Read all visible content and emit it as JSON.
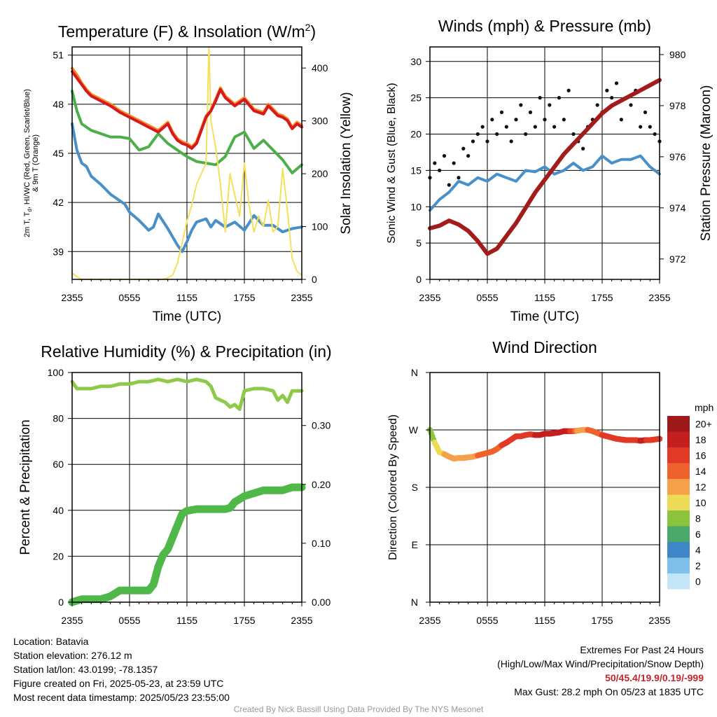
{
  "chart_data": [
    {
      "type": "line",
      "title": "Temperature (F) & Insolation (W/m²)",
      "title_main": "Temperature (F) & Insolation (W/m",
      "title_sup": "2",
      "title_close": ")",
      "xlabel": "Time (UTC)",
      "ylabel_lines": [
        "2m T, T",
        "d",
        ", HI/WC (Red, Green, Scarlet/Blue)",
        "& 9m T (Orange)"
      ],
      "y2label": "Solar Insolation (Yellow)",
      "x_ticks": [
        "2355",
        "0555",
        "1155",
        "1755",
        "2355"
      ],
      "ylim": [
        37.3,
        51.5
      ],
      "y_ticks": [
        39,
        42,
        45,
        48,
        51
      ],
      "y2lim": [
        0,
        440
      ],
      "y2_ticks": [
        0,
        100,
        200,
        300,
        400
      ],
      "series": [
        {
          "name": "2m T",
          "color": "#d7191c",
          "axis": "left",
          "x": [
            0,
            0.5,
            1,
            1.5,
            2,
            3,
            4,
            5,
            6,
            7,
            8,
            9,
            10,
            10.5,
            11,
            11.5,
            12,
            12.5,
            13,
            13.5,
            14,
            14.5,
            15,
            15.5,
            16,
            17,
            18,
            19,
            20,
            20.5,
            21,
            21.5,
            22,
            22.5,
            23,
            23.5,
            24
          ],
          "values": [
            50,
            49.6,
            49.2,
            48.8,
            48.5,
            48.2,
            47.9,
            47.5,
            47.2,
            46.9,
            46.6,
            46.3,
            46.8,
            46.2,
            45.8,
            45.6,
            45.5,
            45.3,
            45.6,
            46.4,
            47.2,
            47.6,
            48.2,
            48.9,
            48.4,
            47.9,
            48.3,
            47.6,
            47.4,
            47.9,
            47.6,
            47.3,
            47.2,
            47.0,
            46.5,
            46.8,
            46.6
          ]
        },
        {
          "name": "9m T",
          "color": "#f28c28",
          "axis": "left",
          "x": [
            0,
            0.5,
            1,
            1.5,
            2,
            3,
            4,
            5,
            6,
            7,
            8,
            9,
            10,
            10.5,
            11,
            11.5,
            12,
            12.5,
            13,
            13.5,
            14,
            14.5,
            15,
            15.5,
            16,
            17,
            18,
            19,
            20,
            20.5,
            21,
            21.5,
            22,
            22.5,
            23,
            23.5,
            24
          ],
          "values": [
            50.2,
            49.8,
            49.3,
            48.9,
            48.6,
            48.3,
            48.0,
            47.6,
            47.3,
            47.0,
            46.7,
            46.4,
            46.9,
            46.3,
            45.9,
            45.7,
            45.6,
            45.4,
            45.7,
            46.5,
            47.3,
            47.6,
            48.3,
            49.0,
            48.5,
            48.0,
            48.4,
            47.7,
            47.5,
            48.0,
            47.7,
            47.4,
            47.3,
            47.1,
            46.6,
            46.9,
            46.7
          ]
        },
        {
          "name": "2m Td",
          "color": "#4daf4a",
          "axis": "left",
          "x": [
            0,
            0.5,
            1,
            1.5,
            2,
            3,
            4,
            5,
            6,
            7,
            8,
            9,
            10,
            11,
            12,
            13,
            14,
            15,
            16,
            17,
            18,
            19,
            20,
            21,
            22,
            23,
            24
          ],
          "values": [
            48.8,
            47.6,
            46.8,
            46.6,
            46.4,
            46.2,
            46.0,
            46.0,
            45.9,
            45.2,
            45.4,
            46.2,
            45.6,
            45.2,
            44.8,
            44.5,
            44.4,
            44.3,
            44.8,
            46.0,
            46.3,
            45.3,
            45.8,
            45.2,
            44.6,
            43.8,
            44.3
          ]
        },
        {
          "name": "HI/WC",
          "color": "#4a90c8",
          "axis": "left",
          "x": [
            0,
            0.5,
            1,
            1.5,
            2,
            3,
            4,
            5,
            5.5,
            6,
            7,
            7.5,
            8,
            8.5,
            9,
            10,
            10.5,
            11,
            11.5,
            12,
            12.5,
            13,
            14,
            14.5,
            15,
            16,
            17,
            18,
            19,
            20,
            21,
            22,
            23,
            24
          ],
          "values": [
            46.8,
            45.2,
            44.4,
            44.2,
            43.6,
            43.1,
            42.5,
            42.1,
            41.9,
            41.4,
            40.9,
            40.6,
            40.3,
            40.5,
            41.3,
            40.4,
            39.9,
            39.4,
            39.0,
            39.6,
            40.3,
            40.8,
            41.0,
            40.5,
            40.9,
            40.5,
            40.8,
            40.3,
            41.2,
            40.6,
            40.6,
            40.2,
            40.4,
            40.5
          ]
        },
        {
          "name": "Solar Insolation",
          "color": "#f5e05a",
          "axis": "right",
          "x": [
            0,
            0.5,
            1,
            2,
            3,
            4,
            5,
            6,
            7,
            8,
            9,
            9.5,
            10,
            10.5,
            11,
            11.5,
            12,
            12.5,
            13,
            13.5,
            14,
            14.3,
            14.5,
            15,
            15.5,
            16,
            16.5,
            17,
            17.5,
            18,
            18.5,
            19,
            19.5,
            20,
            20.5,
            21,
            21.5,
            22,
            22.5,
            23,
            23.5,
            24
          ],
          "values": [
            12,
            5,
            0,
            0,
            0,
            0,
            0,
            0,
            0,
            0,
            0,
            0,
            3,
            8,
            30,
            70,
            110,
            140,
            180,
            200,
            220,
            440,
            300,
            250,
            180,
            90,
            200,
            160,
            120,
            220,
            140,
            90,
            120,
            100,
            150,
            90,
            100,
            210,
            130,
            40,
            15,
            8
          ]
        }
      ]
    },
    {
      "type": "scatter",
      "title": "Winds (mph) & Pressure (mb)",
      "xlabel": "Time (UTC)",
      "ylabel": "Sonic Wind & Gust (Blue, Black)",
      "y2label": "Station Pressure (Maroon)",
      "x_ticks": [
        "2355",
        "0555",
        "1155",
        "1755",
        "2355"
      ],
      "ylim": [
        0,
        32
      ],
      "y_ticks": [
        0,
        5,
        10,
        15,
        20,
        25,
        30
      ],
      "y2lim": [
        971.2,
        980.3
      ],
      "y2_ticks": [
        972,
        974,
        976,
        978,
        980
      ],
      "series": [
        {
          "name": "Sonic Wind",
          "color": "#4a90c8",
          "axis": "left",
          "x": [
            0,
            1,
            2,
            3,
            4,
            5,
            6,
            7,
            8,
            9,
            10,
            11,
            12,
            13,
            14,
            15,
            16,
            17,
            18,
            19,
            20,
            21,
            22,
            23,
            24
          ],
          "values": [
            9.5,
            11,
            12,
            13.5,
            13,
            14,
            13.5,
            14.5,
            14,
            13.5,
            15,
            14.8,
            15.5,
            14.5,
            15,
            16,
            15,
            15.5,
            17,
            16,
            16.5,
            16.5,
            17,
            15.5,
            14.5
          ]
        },
        {
          "name": "Gust",
          "color": "#111111",
          "axis": "left",
          "x": [
            0,
            0.5,
            1,
            1.5,
            2,
            2.5,
            3,
            3.5,
            4,
            4.5,
            5,
            5.5,
            6,
            6.5,
            7,
            7.5,
            8,
            8.5,
            9,
            9.5,
            10,
            10.5,
            11,
            11.5,
            12,
            12.5,
            13,
            13.5,
            14,
            14.5,
            15,
            15.5,
            16,
            16.5,
            17,
            17.5,
            18,
            18.5,
            19,
            19.5,
            20,
            20.5,
            21,
            21.5,
            22,
            22.5,
            23,
            23.5,
            24
          ],
          "values": [
            14,
            16,
            15,
            17,
            13,
            16,
            14,
            18,
            17,
            19,
            20,
            21,
            19,
            22,
            20,
            23,
            21,
            19,
            22,
            24,
            20,
            23,
            21,
            25,
            22,
            24,
            21,
            25,
            22,
            26,
            20,
            19,
            18,
            21,
            22,
            24,
            23,
            26,
            25,
            27,
            22,
            25,
            24,
            26,
            21,
            23,
            21,
            20,
            19
          ]
        },
        {
          "name": "Station Pressure",
          "color": "#a31c1c",
          "axis": "right",
          "x": [
            0,
            1,
            2,
            3,
            4,
            5,
            6,
            7,
            8,
            9,
            10,
            11,
            12,
            13,
            14,
            15,
            16,
            17,
            18,
            19,
            20,
            21,
            22,
            23,
            24
          ],
          "values": [
            973.2,
            973.3,
            973.5,
            973.35,
            973.1,
            972.7,
            972.2,
            972.4,
            972.9,
            973.4,
            974,
            974.6,
            975.1,
            975.6,
            976.1,
            976.5,
            976.9,
            977.3,
            977.7,
            978,
            978.2,
            978.4,
            978.6,
            978.8,
            979
          ]
        }
      ]
    },
    {
      "type": "line",
      "title": "Relative Humidity (%) & Precipitation (in)",
      "ylabel": "Percent & Precipitation",
      "x_ticks": [
        "2355",
        "0555",
        "1155",
        "1755",
        "2355"
      ],
      "ylim": [
        0,
        100
      ],
      "y_ticks": [
        0,
        20,
        40,
        60,
        80,
        100
      ],
      "y2lim": [
        0,
        0.39
      ],
      "y2_ticks": [
        "0.00",
        "0.10",
        "0.20",
        "0.30"
      ],
      "series": [
        {
          "name": "Relative Humidity",
          "color": "#8fc94a",
          "axis": "left",
          "x": [
            0,
            0.5,
            1,
            2,
            3,
            4,
            5,
            6,
            7,
            8,
            9,
            10,
            11,
            12,
            13,
            14,
            14.5,
            15,
            15.5,
            16,
            16.5,
            17,
            17.5,
            18,
            19,
            20,
            21,
            21.5,
            22,
            22.5,
            23,
            24
          ],
          "values": [
            96,
            93,
            93,
            93,
            94,
            94,
            95,
            95,
            96,
            96,
            97,
            96,
            97,
            96,
            97,
            96,
            94,
            89,
            88,
            87,
            85,
            86,
            84,
            92,
            93,
            93,
            92,
            88,
            90,
            87,
            92,
            92
          ]
        },
        {
          "name": "Precipitation",
          "color": "#50b848",
          "axis": "right",
          "x": [
            0,
            1,
            2,
            3,
            4,
            4.5,
            5,
            6,
            7,
            8,
            8.5,
            9,
            9.5,
            10,
            10.5,
            11,
            11.5,
            12,
            13,
            14,
            15,
            16,
            16.5,
            17,
            17.5,
            18,
            19,
            20,
            21,
            22,
            23,
            24
          ],
          "values": [
            0,
            0.005,
            0.005,
            0.005,
            0.01,
            0.015,
            0.02,
            0.02,
            0.02,
            0.02,
            0.03,
            0.06,
            0.08,
            0.09,
            0.11,
            0.13,
            0.15,
            0.155,
            0.158,
            0.158,
            0.158,
            0.158,
            0.16,
            0.17,
            0.175,
            0.18,
            0.185,
            0.19,
            0.19,
            0.19,
            0.195,
            0.195
          ]
        }
      ]
    },
    {
      "type": "scatter",
      "title": "Wind Direction",
      "ylabel": "Direction (Colored By Speed)",
      "x_ticks": [
        "2355",
        "0555",
        "1155",
        "1755",
        "2355"
      ],
      "y_ticks": [
        "N",
        "E",
        "S",
        "W",
        "N"
      ],
      "ylim": [
        0,
        360
      ],
      "series": [
        {
          "name": "Direction",
          "x": [
            0,
            0.5,
            1,
            1.5,
            2,
            2.5,
            3,
            3.5,
            4,
            4.5,
            5,
            5.5,
            6,
            6.5,
            7,
            7.5,
            8,
            8.5,
            9,
            9.5,
            10,
            10.5,
            11,
            11.5,
            12,
            12.5,
            13,
            13.5,
            14,
            14.5,
            15,
            15.5,
            16,
            16.5,
            17,
            17.5,
            18,
            18.5,
            19,
            19.5,
            20,
            20.5,
            21,
            21.5,
            22,
            22.5,
            23,
            23.5,
            24
          ],
          "values": [
            270,
            250,
            235,
            232,
            228,
            225,
            226,
            226,
            227,
            228,
            230,
            232,
            234,
            236,
            240,
            246,
            250,
            255,
            260,
            260,
            262,
            263,
            262,
            262,
            264,
            264,
            265,
            266,
            268,
            268,
            268,
            269,
            270,
            270,
            268,
            265,
            262,
            260,
            258,
            256,
            255,
            254,
            254,
            254,
            253,
            254,
            254,
            255,
            256
          ],
          "speeds": [
            8,
            10,
            10,
            12,
            12,
            12,
            12,
            13,
            13,
            13,
            14,
            14,
            15,
            15,
            15,
            16,
            16,
            17,
            17,
            17,
            17,
            17,
            18,
            18,
            18,
            18,
            18,
            18,
            18,
            18,
            16,
            12,
            13,
            14,
            15,
            15,
            16,
            16,
            16,
            17,
            17,
            17,
            17,
            17,
            18,
            18,
            17,
            16,
            16
          ]
        }
      ],
      "colorbar": {
        "title": "mph",
        "labels": [
          "20+",
          "18",
          "16",
          "14",
          "12",
          "10",
          "8",
          "6",
          "4",
          "2",
          "0"
        ],
        "colors": [
          "#9e1a1a",
          "#c41f1f",
          "#e03a26",
          "#f0622d",
          "#f5a04a",
          "#ecdc55",
          "#8cc43d",
          "#4aa86a",
          "#3e86c6",
          "#7ec0ea",
          "#c2e5f8"
        ]
      }
    }
  ],
  "info": {
    "location": "Location: Batavia",
    "elevation": "Station elevation: 276.12 m",
    "latlon": "Station lat/lon: 43.0199; -78.1357",
    "created": "Figure created on Fri, 2025-05-23, at 23:59 UTC",
    "recent": "Most recent data timestamp: 2025/05/23 23:55:00"
  },
  "extremes": {
    "heading": "Extremes For Past 24 Hours",
    "legend": "(High/Low/Max Wind/Precipitation/Snow Depth)",
    "values": "50/45.4/19.9/0.19/-999",
    "gust": "Max Gust: 28.2 mph On 05/23 at 1835 UTC"
  },
  "credit": "Created By Nick Bassill Using Data Provided By The NYS Mesonet"
}
